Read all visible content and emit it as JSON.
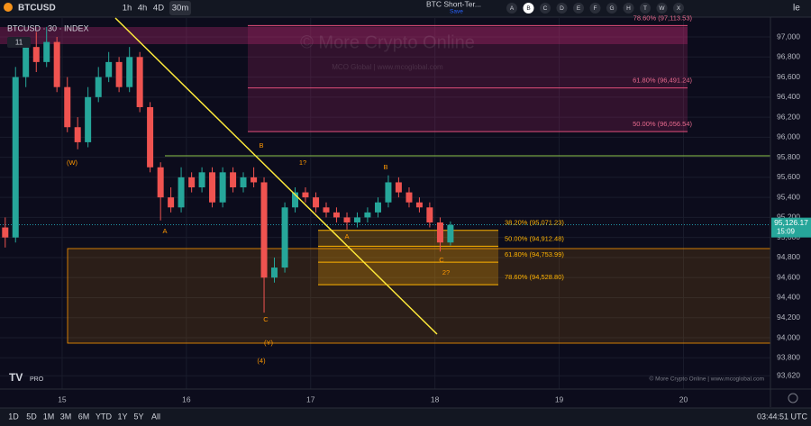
{
  "chart_data": {
    "type": "candlestick",
    "symbol": "BTCUSD",
    "legend": "BTCUSD · 30 · INDEX",
    "legend_badge": "11",
    "watermark": "© More Crypto Online",
    "watermark_sub": "MCO Global  |  www.mcoglobal.com",
    "footer_credit": "© More Crypto Online  |  www.mcoglobal.com",
    "up_color": "#26a69a",
    "down_color": "#ef5350",
    "x": [
      14.542,
      14.625,
      14.708,
      14.792,
      14.875,
      14.958,
      15.042,
      15.125,
      15.208,
      15.292,
      15.375,
      15.458,
      15.542,
      15.625,
      15.708,
      15.792,
      15.875,
      15.958,
      16.042,
      16.125,
      16.208,
      16.292,
      16.375,
      16.458,
      16.542,
      16.625,
      16.708,
      16.792,
      16.875,
      16.958,
      17.042,
      17.125,
      17.208,
      17.292,
      17.375,
      17.458,
      17.542,
      17.625,
      17.708,
      17.792,
      17.875,
      17.958,
      18.042,
      18.125
    ],
    "open": [
      95100,
      95000,
      96600,
      96900,
      96750,
      96950,
      96500,
      96100,
      95950,
      96400,
      96600,
      96750,
      96500,
      96800,
      96300,
      95700,
      95400,
      95300,
      95600,
      95500,
      95650,
      95350,
      95650,
      95500,
      95600,
      95550,
      94600,
      94700,
      95300,
      95450,
      95400,
      95300,
      95250,
      95200,
      95150,
      95200,
      95250,
      95350,
      95550,
      95450,
      95350,
      95300,
      95150,
      94950
    ],
    "high": [
      95200,
      96700,
      97000,
      97050,
      97100,
      97000,
      96600,
      96200,
      96500,
      96700,
      96850,
      96800,
      96900,
      96850,
      96350,
      95750,
      95500,
      95700,
      95650,
      95700,
      95700,
      95700,
      95700,
      95650,
      95700,
      95600,
      94800,
      95350,
      95500,
      95500,
      95450,
      95350,
      95300,
      95250,
      95250,
      95300,
      95400,
      95620,
      95600,
      95500,
      95400,
      95350,
      95200,
      95160
    ],
    "low": [
      94900,
      94950,
      96500,
      96650,
      96700,
      96450,
      96050,
      95880,
      95900,
      96350,
      96550,
      96450,
      96450,
      96250,
      95650,
      95170,
      95250,
      95250,
      95450,
      95450,
      95300,
      95300,
      95450,
      95450,
      95500,
      94250,
      94550,
      94650,
      95250,
      95350,
      95250,
      95200,
      95150,
      95080,
      95100,
      95150,
      95200,
      95300,
      95400,
      95300,
      95250,
      95100,
      94860,
      94920
    ],
    "close": [
      95000,
      96600,
      96900,
      96750,
      96950,
      96500,
      96100,
      95950,
      96400,
      96600,
      96750,
      96500,
      96800,
      96300,
      95700,
      95400,
      95300,
      95600,
      95500,
      95650,
      95350,
      95650,
      95500,
      95600,
      95550,
      94600,
      94700,
      95300,
      95450,
      95400,
      95300,
      95250,
      95200,
      95150,
      95200,
      95250,
      95350,
      95550,
      95450,
      95350,
      95300,
      95150,
      94950,
      95126.17
    ],
    "price_label": "95,126.17",
    "countdown": "15:09",
    "xlim": [
      14.5,
      20.7
    ],
    "xticks": [
      15,
      16,
      17,
      18,
      19,
      20
    ],
    "ylim": [
      93488,
      97189
    ],
    "yticks": [
      {
        "value": 93620,
        "label": "93,620"
      },
      {
        "value": 93800,
        "label": "93,800"
      },
      {
        "value": 94000,
        "label": "94,000"
      },
      {
        "value": 94200,
        "label": "94,200"
      },
      {
        "value": 94400,
        "label": "94,400"
      },
      {
        "value": 94600,
        "label": "94,600"
      },
      {
        "value": 94800,
        "label": "94,800"
      },
      {
        "value": 95000,
        "label": "95,000"
      },
      {
        "value": 95200,
        "label": "95,200"
      },
      {
        "value": 95400,
        "label": "95,400"
      },
      {
        "value": 95600,
        "label": "95,600"
      },
      {
        "value": 95800,
        "label": "95,800"
      },
      {
        "value": 96000,
        "label": "96,000"
      },
      {
        "value": 96200,
        "label": "96,200"
      },
      {
        "value": 96400,
        "label": "96,400"
      },
      {
        "value": 96600,
        "label": "96,600"
      },
      {
        "value": 96800,
        "label": "96,800"
      },
      {
        "value": 97000,
        "label": "97,000"
      }
    ],
    "fib_upper": [
      {
        "value": 97113.53,
        "label": "78.60% (97,113.53)"
      },
      {
        "value": 96491.24,
        "label": "61.80% (96,491.24)"
      },
      {
        "value": 96056.54,
        "label": "50.00% (96,056.54)"
      }
    ],
    "fib_lower": [
      {
        "value": 95071.23,
        "label": "38.20% (95,071.23)"
      },
      {
        "value": 94912.48,
        "label": "50.00% (94,912.48)"
      },
      {
        "value": 94753.99,
        "label": "61.80% (94,753.99)"
      },
      {
        "value": 94528.8,
        "label": "78.60% (94,528.80)"
      }
    ],
    "annotations": [
      "(W)",
      "A",
      "B",
      "1?",
      "A",
      "B",
      "C",
      "2?",
      "C",
      "(Y)",
      "(4)"
    ]
  },
  "toolbar": {
    "symbol": "BTCUSD",
    "intervals": [
      "1h",
      "4h",
      "4D",
      "30m"
    ],
    "layout_name": "BTC Short-Ter...",
    "save": "Save",
    "letters": [
      "A",
      "B",
      "C",
      "D",
      "E",
      "F",
      "G",
      "H",
      "T",
      "W",
      "X"
    ],
    "extra": "le"
  },
  "bottom_bar": {
    "ranges": [
      "1D",
      "5D",
      "1M",
      "3M",
      "6M",
      "YTD",
      "1Y",
      "5Y",
      "All"
    ],
    "clock": "03:44:51 UTC"
  },
  "logo": "PRO"
}
